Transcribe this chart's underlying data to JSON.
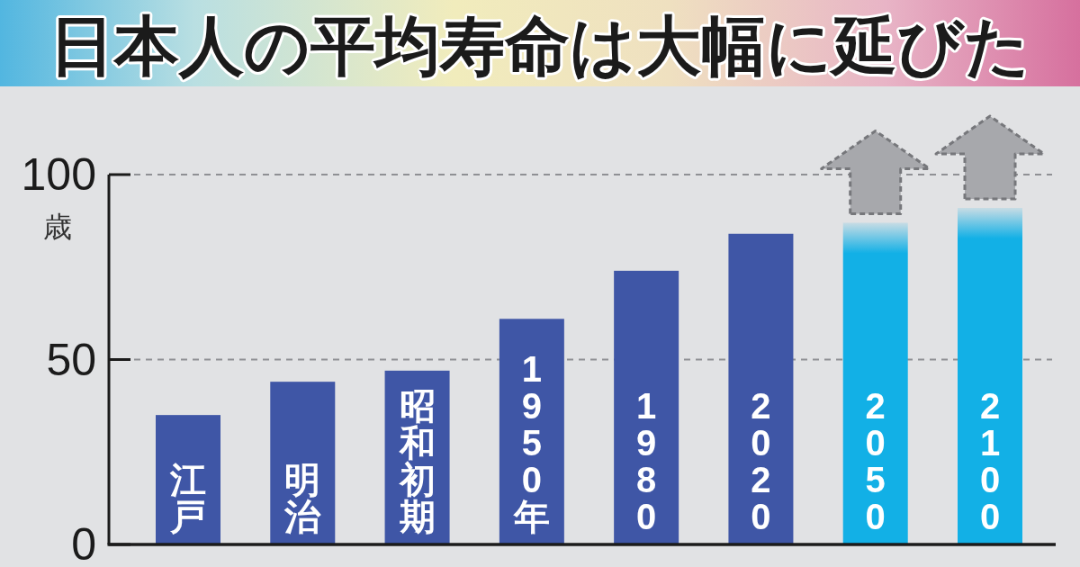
{
  "chart_data": {
    "type": "bar",
    "title": "日本人の平均寿命は大幅に延びた",
    "ylabel": "歳",
    "categories": [
      "江戸",
      "明治",
      "昭和初期",
      "1950年",
      "1980",
      "2020",
      "2050",
      "2100"
    ],
    "values": [
      35,
      44,
      47,
      61,
      74,
      84,
      87,
      91
    ],
    "colors": [
      "#3f56a6",
      "#3f56a6",
      "#3f56a6",
      "#3f56a6",
      "#3f56a6",
      "#3f56a6",
      "#12b0e6",
      "#12b0e6"
    ],
    "ylim": [
      0,
      100
    ],
    "yticks": [
      0,
      50,
      100
    ],
    "grid": "y"
  }
}
